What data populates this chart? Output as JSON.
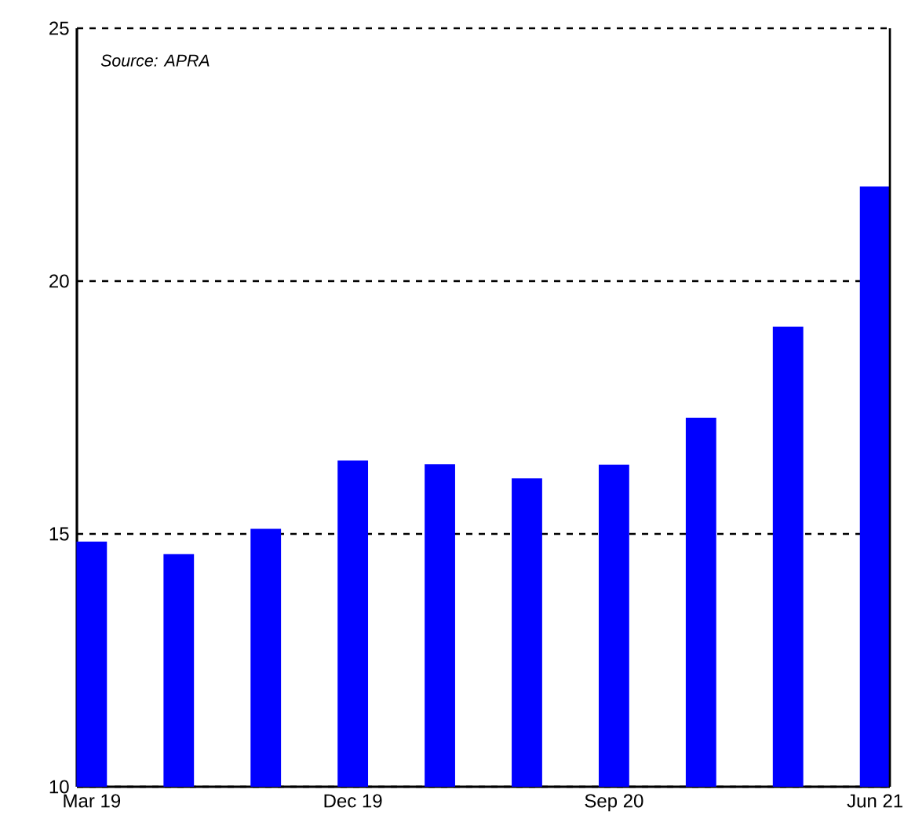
{
  "chart_data": {
    "type": "bar",
    "categories": [
      "Mar 19",
      null,
      null,
      "Dec 19",
      null,
      null,
      "Sep 20",
      null,
      null,
      "Jun 21"
    ],
    "values": [
      14.85,
      14.6,
      15.1,
      16.45,
      16.38,
      16.1,
      16.37,
      17.3,
      19.1,
      21.87
    ],
    "color": "#0000ff",
    "ylim": [
      10,
      25
    ],
    "yticks": [
      10,
      15,
      20,
      25
    ],
    "grid": "y",
    "annotations": [
      "Source: APRA"
    ]
  }
}
